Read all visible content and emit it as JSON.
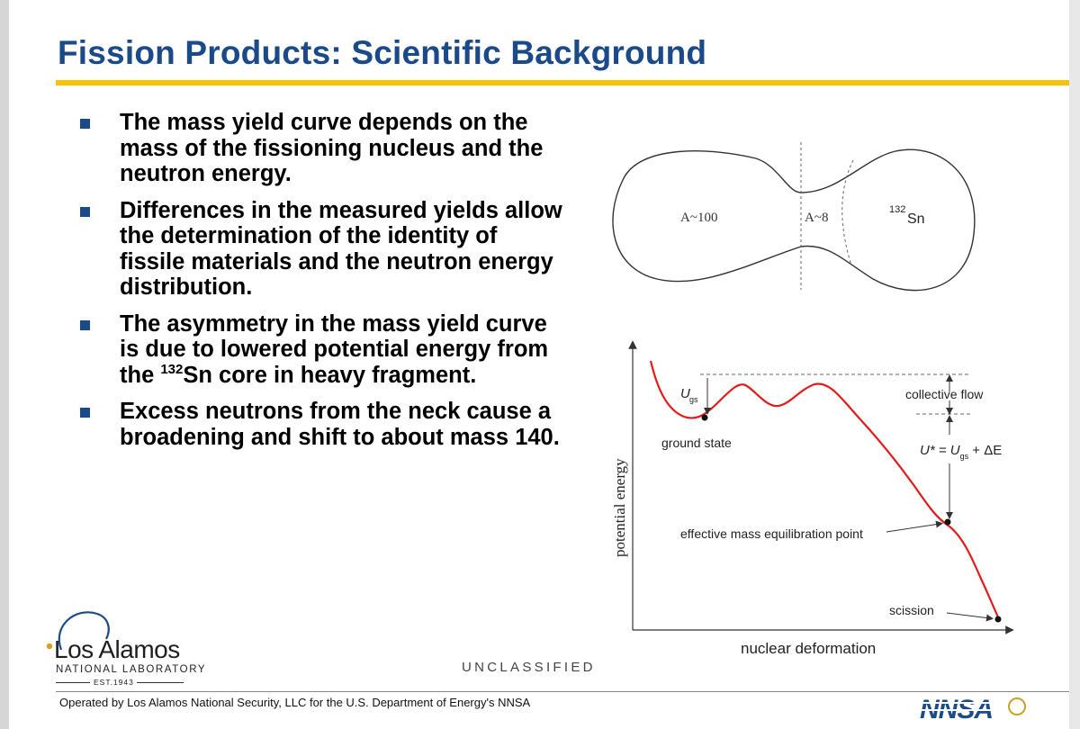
{
  "slide": {
    "title": "Fission Products: Scientific Background",
    "bullets": [
      {
        "text": "The mass yield curve depends on the mass of the fissioning nucleus and the neutron energy."
      },
      {
        "text": "Differences in the measured yields allow the determination of the identity of fissile materials and the neutron energy distribution."
      },
      {
        "text_before": "The asymmetry in the mass yield curve is due to lowered potential energy from the ",
        "sup": "132",
        "text_after": "Sn core in heavy fragment."
      },
      {
        "line1": "Excess neutrons from the neck",
        "rest": "cause a broadening and shift to about mass 140."
      }
    ]
  },
  "nucleus_diagram": {
    "left_label": "A~100",
    "neck_label": "A~8",
    "right_label_sup": "132",
    "right_label": "Sn"
  },
  "energy_diagram": {
    "ylabel": "potential energy",
    "xlabel": "nuclear deformation",
    "u_gs_symbol": "U",
    "u_gs_sub": "gs",
    "ground_state": "ground state",
    "collective_flow": "collective flow",
    "formula": {
      "u_star": "U* = U",
      "sub": "gs",
      "tail": " + ΔE"
    },
    "equilibration": "effective mass equilibration point",
    "scission": "scission",
    "curve_color": "#e31b1b"
  },
  "footer": {
    "unclassified": "UNCLASSIFIED",
    "operated_by": "Operated by Los Alamos National Security, LLC for the U.S. Department of Energy's NNSA",
    "logo_name": "Los Alamos",
    "logo_sub": "NATIONAL LABORATORY",
    "logo_est": "EST.1943",
    "nnsa_logo": "NNSA"
  },
  "colors": {
    "title": "#1b4a88",
    "rule": "#f5c400",
    "bullet": "#1b4a88"
  }
}
